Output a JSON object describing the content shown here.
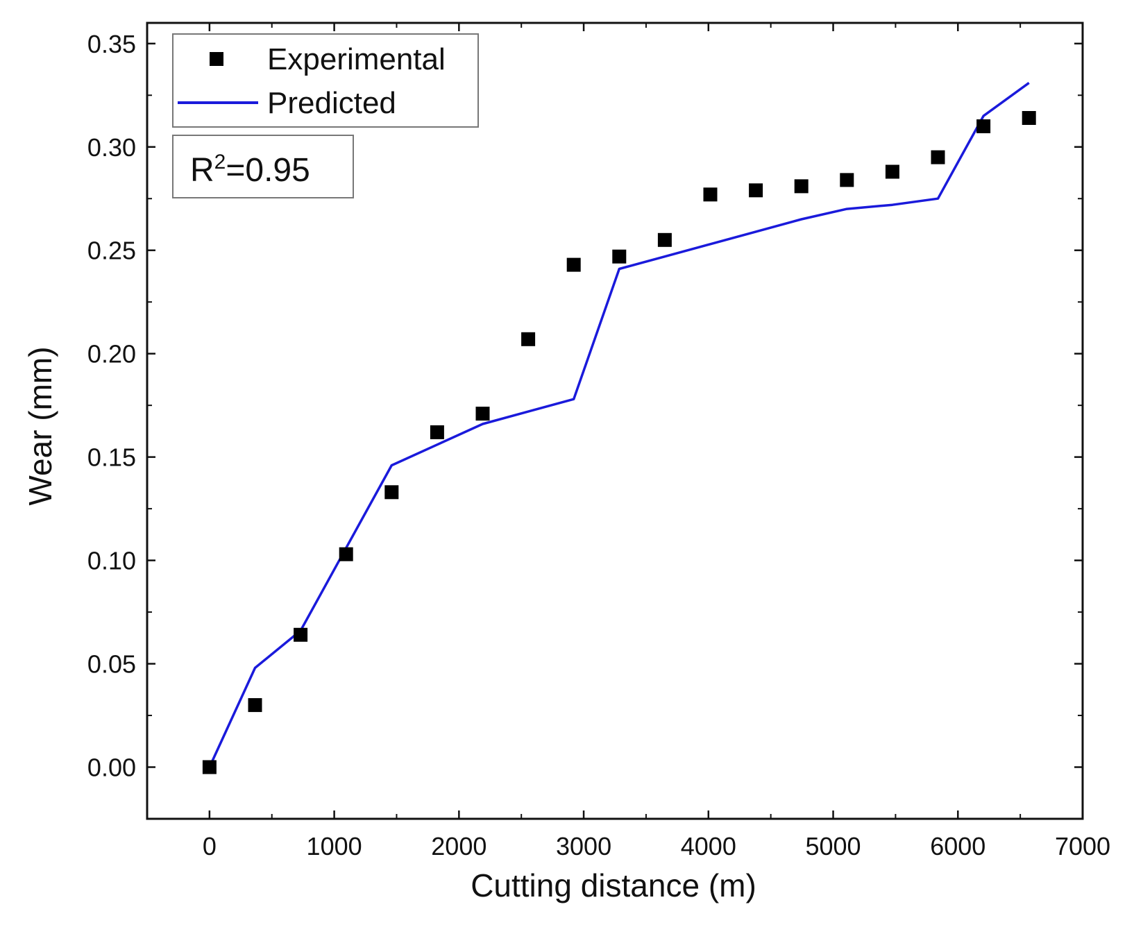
{
  "chart_data": {
    "type": "scatter",
    "xlabel": "Cutting distance (m)",
    "ylabel": "Wear (mm)",
    "xlim": [
      -500,
      7000
    ],
    "ylim": [
      -0.025,
      0.36
    ],
    "x_ticks": [
      0,
      1000,
      2000,
      3000,
      4000,
      5000,
      6000,
      7000
    ],
    "x_tick_labels": [
      "0",
      "1000",
      "2000",
      "3000",
      "4000",
      "5000",
      "6000",
      "7000"
    ],
    "y_ticks": [
      0.0,
      0.05,
      0.1,
      0.15,
      0.2,
      0.25,
      0.3,
      0.35
    ],
    "y_tick_labels": [
      "0.00",
      "0.05",
      "0.10",
      "0.15",
      "0.20",
      "0.25",
      "0.30",
      "0.35"
    ],
    "grid": false,
    "legend_position": "top-left",
    "series": [
      {
        "name": "Experimental",
        "kind": "scatter",
        "marker": "square",
        "color": "#000000",
        "points": [
          [
            0,
            0.0
          ],
          [
            365,
            0.03
          ],
          [
            730,
            0.064
          ],
          [
            1095,
            0.103
          ],
          [
            1460,
            0.133
          ],
          [
            1825,
            0.162
          ],
          [
            2190,
            0.171
          ],
          [
            2555,
            0.207
          ],
          [
            2920,
            0.243
          ],
          [
            3285,
            0.247
          ],
          [
            3650,
            0.255
          ],
          [
            4015,
            0.277
          ],
          [
            4380,
            0.279
          ],
          [
            4745,
            0.281
          ],
          [
            5110,
            0.284
          ],
          [
            5475,
            0.288
          ],
          [
            5840,
            0.295
          ],
          [
            6205,
            0.31
          ],
          [
            6570,
            0.314
          ]
        ]
      },
      {
        "name": "Predicted",
        "kind": "line",
        "color": "#1a1adb",
        "points": [
          [
            0,
            0.0
          ],
          [
            365,
            0.048
          ],
          [
            730,
            0.066
          ],
          [
            1095,
            0.106
          ],
          [
            1460,
            0.146
          ],
          [
            1825,
            0.156
          ],
          [
            2190,
            0.166
          ],
          [
            2555,
            0.172
          ],
          [
            2920,
            0.178
          ],
          [
            3285,
            0.241
          ],
          [
            3650,
            0.247
          ],
          [
            4015,
            0.253
          ],
          [
            4380,
            0.259
          ],
          [
            4745,
            0.265
          ],
          [
            5110,
            0.27
          ],
          [
            5475,
            0.272
          ],
          [
            5840,
            0.275
          ],
          [
            6205,
            0.315
          ],
          [
            6570,
            0.331
          ]
        ]
      }
    ],
    "annotation": {
      "prefix": "R",
      "superscript": "2",
      "suffix": "=0.95"
    }
  }
}
